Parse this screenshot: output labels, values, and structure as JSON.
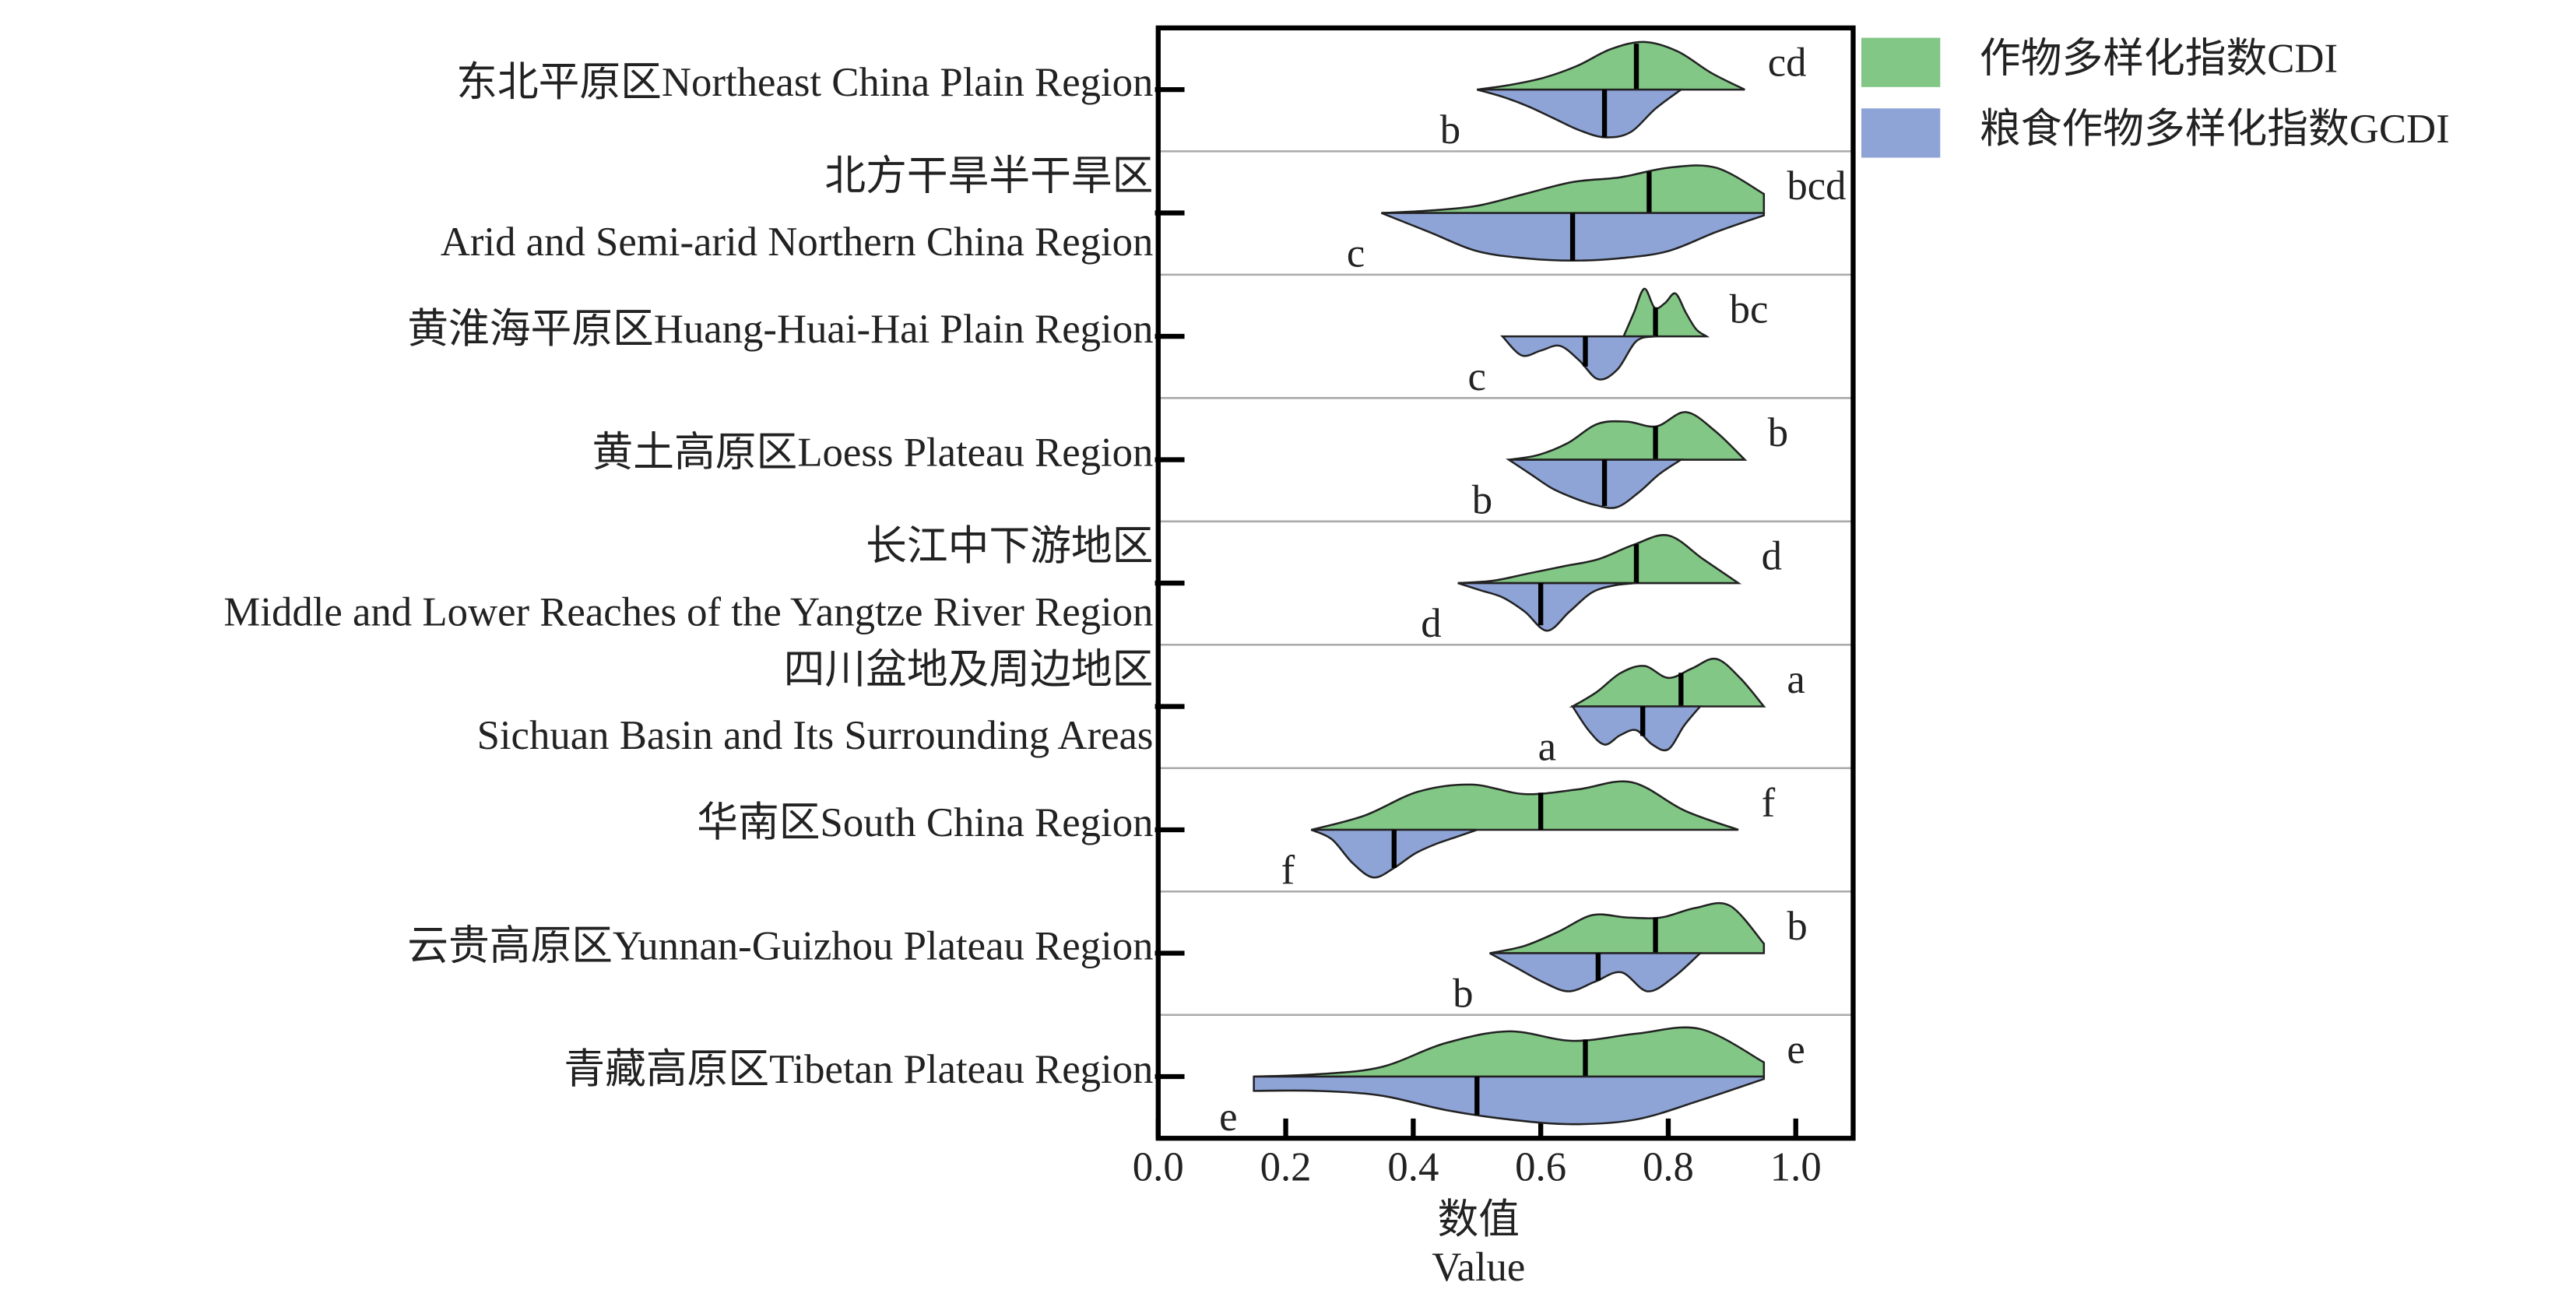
{
  "chart_data": {
    "type": "violin",
    "orientation": "horizontal",
    "categories": [
      [
        "东北平原区Northeast China Plain Region"
      ],
      [
        "北方干旱半干旱区",
        "Arid and Semi-arid Northern China Region"
      ],
      [
        "黄淮海平原区Huang-Huai-Hai Plain Region"
      ],
      [
        "黄土高原区Loess Plateau Region"
      ],
      [
        "长江中下游地区",
        "Middle and Lower Reaches of the Yangtze River Region"
      ],
      [
        "四川盆地及周边地区",
        "Sichuan Basin and Its Surrounding Areas"
      ],
      [
        "华南区South China Region"
      ],
      [
        "云贵高原区Yunnan-Guizhou Plateau Region"
      ],
      [
        "青藏高原区Tibetan Plateau Region"
      ]
    ],
    "series": [
      {
        "name": "作物多样化指数CDI",
        "color": "#82c785",
        "side": "upper",
        "letter_color": "#3a6b2a",
        "medians": [
          0.75,
          0.77,
          0.78,
          0.78,
          0.75,
          0.82,
          0.6,
          0.78,
          0.67
        ],
        "min": [
          0.5,
          0.35,
          0.73,
          0.55,
          0.47,
          0.65,
          0.24,
          0.52,
          0.15
        ],
        "max": [
          0.92,
          0.95,
          0.86,
          0.92,
          0.91,
          0.95,
          0.91,
          0.95,
          0.95
        ],
        "letters": [
          "cd",
          "bcd",
          "bc",
          "b",
          "d",
          "a",
          "f",
          "b",
          "e"
        ],
        "density": [
          [
            0,
            0.1,
            0.25,
            0.5,
            0.85,
            1,
            0.8,
            0.35,
            0
          ],
          [
            0,
            0.05,
            0.15,
            0.4,
            0.65,
            0.75,
            0.95,
            0.95,
            0.4
          ],
          [
            0,
            0.5,
            1,
            0.6,
            0.7,
            0.9,
            0.5,
            0.15,
            0
          ],
          [
            0,
            0.1,
            0.35,
            0.75,
            0.8,
            0.7,
            1,
            0.6,
            0
          ],
          [
            0,
            0.05,
            0.2,
            0.35,
            0.5,
            0.8,
            1,
            0.5,
            0
          ],
          [
            0,
            0.3,
            0.7,
            0.85,
            0.6,
            0.8,
            1,
            0.6,
            0
          ],
          [
            0,
            0.3,
            0.8,
            0.95,
            0.75,
            0.85,
            1,
            0.4,
            0
          ],
          [
            0,
            0.15,
            0.45,
            0.8,
            0.75,
            0.75,
            0.95,
            1,
            0.2
          ],
          [
            0,
            0.05,
            0.2,
            0.7,
            0.95,
            0.75,
            0.9,
            1,
            0.3
          ]
        ]
      },
      {
        "name": "粮食作物多样化指数GCDI",
        "color": "#8ea3d6",
        "side": "lower",
        "letter_color": "#3a5a8a",
        "medians": [
          0.7,
          0.65,
          0.67,
          0.7,
          0.6,
          0.76,
          0.37,
          0.69,
          0.5
        ],
        "min": [
          0.5,
          0.35,
          0.54,
          0.55,
          0.47,
          0.65,
          0.24,
          0.52,
          0.15
        ],
        "max": [
          0.82,
          0.95,
          0.78,
          0.82,
          0.75,
          0.85,
          0.5,
          0.85,
          0.95
        ],
        "letters": [
          "b",
          "c",
          "c",
          "b",
          "d",
          "a",
          "f",
          "b",
          "e"
        ],
        "density": [
          [
            0,
            0.15,
            0.35,
            0.6,
            0.85,
            1,
            0.9,
            0.4,
            0
          ],
          [
            0,
            0.4,
            0.8,
            0.95,
            1,
            0.95,
            0.8,
            0.4,
            0.05
          ],
          [
            0,
            0.4,
            0.3,
            0.2,
            0.5,
            0.9,
            0.7,
            0.1,
            0
          ],
          [
            0,
            0.3,
            0.6,
            0.8,
            0.95,
            1,
            0.7,
            0.3,
            0
          ],
          [
            0,
            0.15,
            0.3,
            0.6,
            1,
            0.6,
            0.2,
            0.05,
            0
          ],
          [
            0,
            0.5,
            0.8,
            0.6,
            0.5,
            0.8,
            0.9,
            0.4,
            0
          ],
          [
            0,
            0.2,
            0.7,
            1,
            0.8,
            0.5,
            0.3,
            0.15,
            0
          ],
          [
            0,
            0.3,
            0.6,
            0.8,
            0.6,
            0.4,
            0.8,
            0.5,
            0
          ],
          [
            0.3,
            0.3,
            0.4,
            0.7,
            0.9,
            1,
            0.9,
            0.5,
            0.05
          ]
        ]
      }
    ],
    "x_label": [
      "数值",
      "Value"
    ],
    "xlim": [
      0,
      1.09
    ],
    "xticks": [
      {
        "value": 0,
        "label": "0.0"
      },
      {
        "value": 0.2,
        "label": "0.2"
      },
      {
        "value": 0.4,
        "label": "0.4"
      },
      {
        "value": 0.6,
        "label": "0.6"
      },
      {
        "value": 0.8,
        "label": "0.8"
      },
      {
        "value": 1.0,
        "label": "1.0"
      }
    ],
    "legend": "upper right"
  }
}
